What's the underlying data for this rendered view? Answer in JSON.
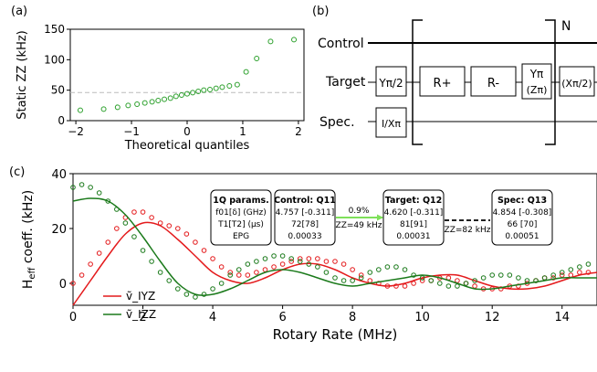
{
  "panel_labels": {
    "a": "(a)",
    "b": "(b)",
    "c": "(c)"
  },
  "chart_data": [
    {
      "type": "scatter",
      "panel": "(a)",
      "xlabel": "Theoretical quantiles",
      "ylabel": "Static ZZ (kHz)",
      "xlim": [
        -2.1,
        2.1
      ],
      "ylim": [
        0,
        150
      ],
      "xticks": [
        -2,
        -1,
        0,
        1,
        2
      ],
      "xtick_labels": [
        "−2",
        "−1",
        "0",
        "1",
        "2"
      ],
      "yticks": [
        0,
        50,
        100,
        150
      ],
      "ytick_labels": [
        "0",
        "50",
        "100",
        "150"
      ],
      "reference_line": 45,
      "color": "#2ca02c",
      "points": [
        [
          -1.92,
          17
        ],
        [
          -1.5,
          19
        ],
        [
          -1.25,
          22
        ],
        [
          -1.06,
          25
        ],
        [
          -0.9,
          27
        ],
        [
          -0.76,
          29
        ],
        [
          -0.63,
          31
        ],
        [
          -0.52,
          33
        ],
        [
          -0.41,
          35
        ],
        [
          -0.3,
          37
        ],
        [
          -0.2,
          40
        ],
        [
          -0.1,
          42
        ],
        [
          0.0,
          44
        ],
        [
          0.1,
          46
        ],
        [
          0.2,
          48
        ],
        [
          0.3,
          50
        ],
        [
          0.41,
          51
        ],
        [
          0.52,
          53
        ],
        [
          0.63,
          55
        ],
        [
          0.76,
          57
        ],
        [
          0.9,
          59
        ],
        [
          1.06,
          80
        ],
        [
          1.25,
          102
        ],
        [
          1.5,
          130
        ],
        [
          1.92,
          133
        ]
      ]
    },
    {
      "type": "line+scatter",
      "panel": "(c)",
      "xlabel": "Rotary Rate (MHz)",
      "ylabel": "H_eff coeff. (kHz)",
      "xlim": [
        0,
        15
      ],
      "ylim": [
        -8,
        40
      ],
      "xticks": [
        0,
        2,
        4,
        6,
        8,
        10,
        12,
        14
      ],
      "xtick_labels": [
        "0",
        "2",
        "4",
        "6",
        "8",
        "10",
        "12",
        "14"
      ],
      "yticks": [
        0,
        20,
        40
      ],
      "ytick_labels": [
        "0",
        "20",
        "40"
      ],
      "series": [
        {
          "name": "ṽ_IYZ",
          "color": "#e41a1c",
          "theory": {
            "x": [
              0,
              0.5,
              1,
              1.5,
              2,
              2.5,
              3,
              3.5,
              4,
              4.5,
              5,
              5.5,
              6,
              6.5,
              7,
              7.5,
              8,
              8.5,
              9,
              9.5,
              10,
              10.5,
              11,
              11.5,
              12,
              12.5,
              13,
              13.5,
              14,
              14.5,
              15
            ],
            "y": [
              -8,
              1,
              10,
              18,
              22,
              21,
              16,
              10,
              4,
              1,
              0,
              2,
              5,
              7,
              7,
              5,
              2,
              0,
              -1,
              0,
              2,
              3,
              3,
              1,
              -1,
              -2,
              -2,
              -1,
              1,
              3,
              4
            ]
          },
          "measured": {
            "x": [
              0,
              0.25,
              0.5,
              0.75,
              1,
              1.25,
              1.5,
              1.75,
              2,
              2.25,
              2.5,
              2.75,
              3,
              3.25,
              3.5,
              3.75,
              4,
              4.25,
              4.5,
              4.75,
              5,
              5.25,
              5.5,
              5.75,
              6,
              6.25,
              6.5,
              6.75,
              7,
              7.25,
              7.5,
              7.75,
              8,
              8.25,
              8.5,
              8.75,
              9,
              9.25,
              9.5,
              9.75,
              10,
              10.25,
              10.5,
              10.75,
              11,
              11.25,
              11.5,
              11.75,
              12,
              12.25,
              12.5,
              12.75,
              13,
              13.25,
              13.5,
              13.75,
              14,
              14.25,
              14.5,
              14.75
            ],
            "y": [
              0,
              3,
              7,
              11,
              15,
              20,
              24,
              26,
              26,
              24,
              22,
              21,
              20,
              18,
              15,
              12,
              9,
              6,
              4,
              3,
              3,
              4,
              5,
              6,
              7,
              8,
              9,
              9,
              9,
              8,
              8,
              7,
              5,
              3,
              1,
              0,
              -1,
              -1,
              -1,
              0,
              1,
              1,
              2,
              2,
              1,
              0,
              -1,
              -2,
              -2,
              -2,
              -1,
              -1,
              0,
              1,
              2,
              2,
              3,
              3,
              4,
              4
            ]
          }
        },
        {
          "name": "ṽ_IZZ",
          "color": "#1b7a1b",
          "theory": {
            "x": [
              0,
              0.5,
              1,
              1.5,
              2,
              2.5,
              3,
              3.5,
              4,
              4.5,
              5,
              5.5,
              6,
              6.5,
              7,
              7.5,
              8,
              8.5,
              9,
              9.5,
              10,
              10.5,
              11,
              11.5,
              12,
              12.5,
              13,
              13.5,
              14,
              14.5,
              15
            ],
            "y": [
              30,
              31,
              30,
              25,
              17,
              8,
              0,
              -4,
              -4,
              -2,
              1,
              4,
              5,
              4,
              2,
              0,
              -1,
              0,
              1,
              2,
              3,
              2,
              0,
              -2,
              -2,
              -1,
              0,
              1,
              2,
              2,
              2
            ]
          },
          "measured": {
            "x": [
              0,
              0.25,
              0.5,
              0.75,
              1,
              1.25,
              1.5,
              1.75,
              2,
              2.25,
              2.5,
              2.75,
              3,
              3.25,
              3.5,
              3.75,
              4,
              4.25,
              4.5,
              4.75,
              5,
              5.25,
              5.5,
              5.75,
              6,
              6.25,
              6.5,
              6.75,
              7,
              7.25,
              7.5,
              7.75,
              8,
              8.25,
              8.5,
              8.75,
              9,
              9.25,
              9.5,
              9.75,
              10,
              10.25,
              10.5,
              10.75,
              11,
              11.25,
              11.5,
              11.75,
              12,
              12.25,
              12.5,
              12.75,
              13,
              13.25,
              13.5,
              13.75,
              14,
              14.25,
              14.5,
              14.75
            ],
            "y": [
              35,
              36,
              35,
              33,
              30,
              27,
              22,
              17,
              12,
              8,
              4,
              1,
              -2,
              -4,
              -5,
              -4,
              -2,
              0,
              3,
              5,
              7,
              8,
              9,
              10,
              10,
              9,
              8,
              7,
              6,
              4,
              2,
              1,
              1,
              2,
              4,
              5,
              6,
              6,
              5,
              3,
              2,
              1,
              0,
              -1,
              -1,
              0,
              1,
              2,
              3,
              3,
              3,
              2,
              1,
              1,
              2,
              3,
              4,
              5,
              6,
              7
            ]
          }
        }
      ],
      "legend": {
        "entries": [
          "ṽ_IYZ",
          "ṽ_IZZ"
        ],
        "placement": "lower-left"
      },
      "annotation_boxes": [
        {
          "title": "1Q params.",
          "lines": [
            "f01[δ] (GHz)",
            "T1[T2] (μs)",
            "EPG"
          ]
        },
        {
          "title": "Control: Q11",
          "lines": [
            "4.757 [-0.311]",
            "72[78]",
            "0.00033"
          ]
        },
        {
          "title": "Target: Q12",
          "lines": [
            "4.620 [-0.311]",
            "81[91]",
            "0.00031"
          ]
        },
        {
          "title": "Spec: Q13",
          "lines": [
            "4.854 [-0.308]",
            "66 [70]",
            "0.00051"
          ]
        }
      ],
      "links": [
        {
          "top": "0.9%",
          "bottom": "ZZ=49 kHz",
          "color": "#7ee05a"
        },
        {
          "bottom": "ZZ=82 kHz"
        }
      ]
    }
  ],
  "circuit": {
    "wires": [
      "Control",
      "Target",
      "Spec."
    ],
    "repeat": "N",
    "gates": {
      "y_half": "Yπ/2",
      "ix_pi": "I/Xπ",
      "r_plus": "R+",
      "r_minus": "R-",
      "y_pi": "Yπ",
      "z_pi": "(Zπ)",
      "x_half": "(Xπ/2)"
    }
  }
}
